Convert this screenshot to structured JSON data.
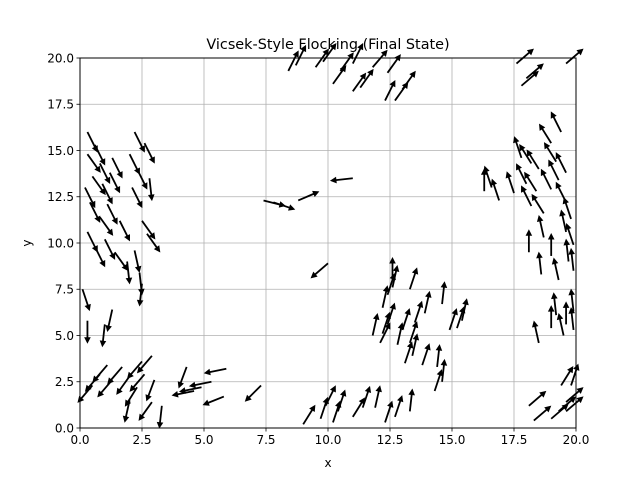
{
  "chart_data": {
    "type": "quiver",
    "title": "Vicsek-Style Flocking (Final State)",
    "xlabel": "x",
    "ylabel": "y",
    "xlim": [
      0,
      20
    ],
    "ylim": [
      0,
      20
    ],
    "xticks": [
      "0.0",
      "2.5",
      "5.0",
      "7.5",
      "10.0",
      "12.5",
      "15.0",
      "17.5",
      "20.0"
    ],
    "yticks": [
      "0.0",
      "2.5",
      "5.0",
      "7.5",
      "10.0",
      "12.5",
      "15.0",
      "17.5",
      "20.0"
    ],
    "grid": true,
    "arrow_color": "#000000",
    "grid_color": "#b0b0b0",
    "arrows": [
      {
        "x": 0.3,
        "y": 16.0,
        "u": 0.4,
        "v": -0.8
      },
      {
        "x": 0.6,
        "y": 15.3,
        "u": 0.4,
        "v": -0.8
      },
      {
        "x": 0.3,
        "y": 14.8,
        "u": 0.5,
        "v": -0.7
      },
      {
        "x": 0.8,
        "y": 14.3,
        "u": 0.4,
        "v": -0.8
      },
      {
        "x": 0.5,
        "y": 13.6,
        "u": 0.5,
        "v": -0.7
      },
      {
        "x": 0.2,
        "y": 13.0,
        "u": 0.4,
        "v": -0.8
      },
      {
        "x": 0.9,
        "y": 13.2,
        "u": 0.4,
        "v": -0.8
      },
      {
        "x": 0.4,
        "y": 12.2,
        "u": 0.4,
        "v": -0.8
      },
      {
        "x": 0.8,
        "y": 11.4,
        "u": 0.5,
        "v": -0.7
      },
      {
        "x": 0.3,
        "y": 10.6,
        "u": 0.4,
        "v": -0.8
      },
      {
        "x": 1.0,
        "y": 10.2,
        "u": 0.4,
        "v": -0.8
      },
      {
        "x": 1.4,
        "y": 9.5,
        "u": 0.5,
        "v": -0.7
      },
      {
        "x": 0.6,
        "y": 9.8,
        "u": 0.4,
        "v": -0.8
      },
      {
        "x": 1.1,
        "y": 12.1,
        "u": 0.4,
        "v": -0.8
      },
      {
        "x": 1.6,
        "y": 11.2,
        "u": 0.4,
        "v": -0.8
      },
      {
        "x": 1.3,
        "y": 14.6,
        "u": 0.4,
        "v": -0.8
      },
      {
        "x": 1.2,
        "y": 13.8,
        "u": 0.4,
        "v": -0.8
      },
      {
        "x": 2.2,
        "y": 16.0,
        "u": 0.4,
        "v": -0.8
      },
      {
        "x": 2.6,
        "y": 15.4,
        "u": 0.4,
        "v": -0.8
      },
      {
        "x": 2.0,
        "y": 14.8,
        "u": 0.4,
        "v": -0.8
      },
      {
        "x": 2.3,
        "y": 14.0,
        "u": 0.4,
        "v": -0.8
      },
      {
        "x": 2.1,
        "y": 13.0,
        "u": 0.4,
        "v": -0.8
      },
      {
        "x": 2.8,
        "y": 13.5,
        "u": 0.1,
        "v": -0.9
      },
      {
        "x": 2.5,
        "y": 11.2,
        "u": 0.5,
        "v": -0.7
      },
      {
        "x": 2.7,
        "y": 10.5,
        "u": 0.5,
        "v": -0.7
      },
      {
        "x": 2.2,
        "y": 9.6,
        "u": 0.2,
        "v": -0.9
      },
      {
        "x": 1.9,
        "y": 9.0,
        "u": 0.1,
        "v": -0.9
      },
      {
        "x": 2.4,
        "y": 8.4,
        "u": 0.1,
        "v": -0.9
      },
      {
        "x": 0.1,
        "y": 7.5,
        "u": 0.3,
        "v": -0.9
      },
      {
        "x": 0.3,
        "y": 5.8,
        "u": 0.0,
        "v": -1.0
      },
      {
        "x": 1.3,
        "y": 6.4,
        "u": -0.2,
        "v": -0.9
      },
      {
        "x": 1.0,
        "y": 5.6,
        "u": -0.1,
        "v": -0.9
      },
      {
        "x": 2.5,
        "y": 7.8,
        "u": -0.1,
        "v": -0.9
      },
      {
        "x": 1.1,
        "y": 3.4,
        "u": -0.6,
        "v": -0.7
      },
      {
        "x": 0.8,
        "y": 2.9,
        "u": -0.6,
        "v": -0.7
      },
      {
        "x": 1.7,
        "y": 3.3,
        "u": -0.6,
        "v": -0.7
      },
      {
        "x": 0.5,
        "y": 2.3,
        "u": -0.6,
        "v": -0.7
      },
      {
        "x": 1.3,
        "y": 2.6,
        "u": -0.6,
        "v": -0.7
      },
      {
        "x": 2.0,
        "y": 2.8,
        "u": -0.5,
        "v": -0.7
      },
      {
        "x": 2.5,
        "y": 3.6,
        "u": -0.6,
        "v": -0.7
      },
      {
        "x": 2.9,
        "y": 3.9,
        "u": -0.6,
        "v": -0.7
      },
      {
        "x": 2.3,
        "y": 2.2,
        "u": -0.5,
        "v": -0.8
      },
      {
        "x": 2.0,
        "y": 1.5,
        "u": -0.2,
        "v": -0.9
      },
      {
        "x": 2.6,
        "y": 2.9,
        "u": -0.6,
        "v": -0.7
      },
      {
        "x": 3.0,
        "y": 2.6,
        "u": -0.3,
        "v": -0.8
      },
      {
        "x": 2.9,
        "y": 1.4,
        "u": -0.5,
        "v": -0.7
      },
      {
        "x": 3.3,
        "y": 1.2,
        "u": -0.1,
        "v": -0.9
      },
      {
        "x": 4.3,
        "y": 3.3,
        "u": -0.3,
        "v": -0.8
      },
      {
        "x": 5.3,
        "y": 2.5,
        "u": -1.0,
        "v": -0.2
      },
      {
        "x": 4.9,
        "y": 2.2,
        "u": -1.0,
        "v": -0.2
      },
      {
        "x": 4.6,
        "y": 2.0,
        "u": -1.0,
        "v": -0.2
      },
      {
        "x": 5.9,
        "y": 3.2,
        "u": -1.0,
        "v": -0.2
      },
      {
        "x": 5.8,
        "y": 1.7,
        "u": -1.0,
        "v": -0.4
      },
      {
        "x": 7.3,
        "y": 2.3,
        "u": -0.7,
        "v": -0.7
      },
      {
        "x": 7.4,
        "y": 12.3,
        "u": 0.8,
        "v": -0.2
      },
      {
        "x": 7.8,
        "y": 12.2,
        "u": 0.9,
        "v": -0.3
      },
      {
        "x": 8.8,
        "y": 12.3,
        "u": 0.7,
        "v": 0.3
      },
      {
        "x": 11.0,
        "y": 13.5,
        "u": -0.9,
        "v": -0.1
      },
      {
        "x": 10.0,
        "y": 8.9,
        "u": -0.7,
        "v": -0.6
      },
      {
        "x": 8.4,
        "y": 19.3,
        "u": 0.4,
        "v": 0.8
      },
      {
        "x": 8.7,
        "y": 19.6,
        "u": 0.4,
        "v": 0.8
      },
      {
        "x": 9.5,
        "y": 19.5,
        "u": 0.5,
        "v": 0.7
      },
      {
        "x": 10.2,
        "y": 18.6,
        "u": 0.5,
        "v": 0.7
      },
      {
        "x": 10.5,
        "y": 19.3,
        "u": 0.5,
        "v": 0.7
      },
      {
        "x": 11.0,
        "y": 18.2,
        "u": 0.5,
        "v": 0.7
      },
      {
        "x": 11.3,
        "y": 18.4,
        "u": 0.5,
        "v": 0.7
      },
      {
        "x": 11.8,
        "y": 19.5,
        "u": 0.6,
        "v": 0.7
      },
      {
        "x": 12.4,
        "y": 19.2,
        "u": 0.5,
        "v": 0.7
      },
      {
        "x": 12.3,
        "y": 17.7,
        "u": 0.4,
        "v": 0.8
      },
      {
        "x": 12.7,
        "y": 17.7,
        "u": 0.5,
        "v": 0.7
      },
      {
        "x": 13.0,
        "y": 18.3,
        "u": 0.5,
        "v": 0.7
      },
      {
        "x": 11.0,
        "y": 19.7,
        "u": 0.4,
        "v": 0.8
      },
      {
        "x": 9.8,
        "y": 19.8,
        "u": 0.5,
        "v": 0.7
      },
      {
        "x": 11.8,
        "y": 5.0,
        "u": 0.2,
        "v": 0.9
      },
      {
        "x": 12.2,
        "y": 5.1,
        "u": 0.3,
        "v": 0.9
      },
      {
        "x": 12.1,
        "y": 4.6,
        "u": 0.4,
        "v": 0.8
      },
      {
        "x": 12.4,
        "y": 5.6,
        "u": 0.3,
        "v": 0.9
      },
      {
        "x": 12.2,
        "y": 6.5,
        "u": 0.2,
        "v": 0.9
      },
      {
        "x": 12.4,
        "y": 7.2,
        "u": 0.3,
        "v": 0.9
      },
      {
        "x": 12.6,
        "y": 7.6,
        "u": 0.2,
        "v": 0.9
      },
      {
        "x": 13.3,
        "y": 7.5,
        "u": 0.3,
        "v": 0.9
      },
      {
        "x": 12.8,
        "y": 4.5,
        "u": 0.2,
        "v": 0.9
      },
      {
        "x": 13.0,
        "y": 5.3,
        "u": 0.3,
        "v": 0.9
      },
      {
        "x": 13.3,
        "y": 4.6,
        "u": 0.3,
        "v": 0.9
      },
      {
        "x": 13.5,
        "y": 5.7,
        "u": 0.3,
        "v": 0.9
      },
      {
        "x": 13.1,
        "y": 3.5,
        "u": 0.3,
        "v": 0.9
      },
      {
        "x": 13.4,
        "y": 3.9,
        "u": 0.2,
        "v": 0.9
      },
      {
        "x": 13.8,
        "y": 3.4,
        "u": 0.3,
        "v": 0.9
      },
      {
        "x": 14.4,
        "y": 3.3,
        "u": 0.1,
        "v": 0.9
      },
      {
        "x": 14.3,
        "y": 2.0,
        "u": 0.3,
        "v": 0.9
      },
      {
        "x": 14.6,
        "y": 2.5,
        "u": 0.1,
        "v": 0.9
      },
      {
        "x": 14.6,
        "y": 6.7,
        "u": 0.1,
        "v": 0.9
      },
      {
        "x": 14.9,
        "y": 5.3,
        "u": 0.3,
        "v": 0.9
      },
      {
        "x": 15.2,
        "y": 5.4,
        "u": 0.3,
        "v": 0.9
      },
      {
        "x": 15.4,
        "y": 5.8,
        "u": 0.2,
        "v": 0.9
      },
      {
        "x": 12.6,
        "y": 8.0,
        "u": 0.0,
        "v": 1.0
      },
      {
        "x": 13.9,
        "y": 6.2,
        "u": 0.2,
        "v": 0.9
      },
      {
        "x": 9.0,
        "y": 0.2,
        "u": 0.5,
        "v": 0.8
      },
      {
        "x": 9.7,
        "y": 0.5,
        "u": 0.3,
        "v": 0.9
      },
      {
        "x": 10.2,
        "y": 0.3,
        "u": 0.3,
        "v": 0.9
      },
      {
        "x": 10.4,
        "y": 0.9,
        "u": 0.3,
        "v": 0.9
      },
      {
        "x": 11.0,
        "y": 0.6,
        "u": 0.5,
        "v": 0.8
      },
      {
        "x": 11.4,
        "y": 1.1,
        "u": 0.3,
        "v": 0.9
      },
      {
        "x": 11.9,
        "y": 1.1,
        "u": 0.2,
        "v": 0.9
      },
      {
        "x": 12.3,
        "y": 0.3,
        "u": 0.3,
        "v": 0.9
      },
      {
        "x": 12.7,
        "y": 0.6,
        "u": 0.3,
        "v": 0.9
      },
      {
        "x": 13.3,
        "y": 0.9,
        "u": 0.1,
        "v": 0.9
      },
      {
        "x": 9.9,
        "y": 1.2,
        "u": 0.4,
        "v": 0.8
      },
      {
        "x": 16.3,
        "y": 12.8,
        "u": 0.0,
        "v": 1.0
      },
      {
        "x": 16.6,
        "y": 13.0,
        "u": -0.3,
        "v": 0.9
      },
      {
        "x": 16.9,
        "y": 12.3,
        "u": -0.3,
        "v": 0.9
      },
      {
        "x": 17.5,
        "y": 12.7,
        "u": -0.3,
        "v": 0.9
      },
      {
        "x": 17.8,
        "y": 14.6,
        "u": -0.3,
        "v": 0.9
      },
      {
        "x": 18.2,
        "y": 14.3,
        "u": -0.5,
        "v": 0.8
      },
      {
        "x": 18.5,
        "y": 14.0,
        "u": -0.5,
        "v": 0.8
      },
      {
        "x": 18.0,
        "y": 13.2,
        "u": -0.4,
        "v": 0.8
      },
      {
        "x": 18.4,
        "y": 12.8,
        "u": -0.5,
        "v": 0.8
      },
      {
        "x": 18.2,
        "y": 12.0,
        "u": -0.4,
        "v": 0.8
      },
      {
        "x": 18.7,
        "y": 11.6,
        "u": -0.5,
        "v": 0.8
      },
      {
        "x": 19.0,
        "y": 12.9,
        "u": -0.4,
        "v": 0.8
      },
      {
        "x": 19.3,
        "y": 13.4,
        "u": -0.4,
        "v": 0.8
      },
      {
        "x": 19.6,
        "y": 13.8,
        "u": -0.4,
        "v": 0.8
      },
      {
        "x": 19.2,
        "y": 14.4,
        "u": -0.5,
        "v": 0.8
      },
      {
        "x": 19.0,
        "y": 15.4,
        "u": -0.5,
        "v": 0.8
      },
      {
        "x": 19.4,
        "y": 16.0,
        "u": -0.4,
        "v": 0.8
      },
      {
        "x": 19.6,
        "y": 12.2,
        "u": -0.4,
        "v": 0.8
      },
      {
        "x": 19.8,
        "y": 11.3,
        "u": -0.3,
        "v": 0.9
      },
      {
        "x": 19.6,
        "y": 10.6,
        "u": -0.2,
        "v": 0.9
      },
      {
        "x": 19.9,
        "y": 9.9,
        "u": -0.3,
        "v": 0.9
      },
      {
        "x": 19.7,
        "y": 9.0,
        "u": -0.1,
        "v": 0.9
      },
      {
        "x": 19.9,
        "y": 8.5,
        "u": -0.1,
        "v": 0.9
      },
      {
        "x": 19.3,
        "y": 8.0,
        "u": -0.2,
        "v": 0.9
      },
      {
        "x": 18.6,
        "y": 8.3,
        "u": -0.1,
        "v": 0.9
      },
      {
        "x": 18.1,
        "y": 9.5,
        "u": 0.0,
        "v": 1.0
      },
      {
        "x": 19.0,
        "y": 9.3,
        "u": 0.0,
        "v": 1.0
      },
      {
        "x": 18.7,
        "y": 10.3,
        "u": -0.2,
        "v": 0.9
      },
      {
        "x": 19.2,
        "y": 6.1,
        "u": -0.1,
        "v": 0.9
      },
      {
        "x": 19.6,
        "y": 5.6,
        "u": 0.0,
        "v": 1.0
      },
      {
        "x": 19.5,
        "y": 5.0,
        "u": -0.2,
        "v": 0.9
      },
      {
        "x": 19.9,
        "y": 5.3,
        "u": -0.1,
        "v": 0.9
      },
      {
        "x": 19.0,
        "y": 5.4,
        "u": 0.0,
        "v": 1.0
      },
      {
        "x": 18.5,
        "y": 4.6,
        "u": -0.2,
        "v": 0.9
      },
      {
        "x": 19.9,
        "y": 6.3,
        "u": -0.1,
        "v": 0.9
      },
      {
        "x": 17.6,
        "y": 19.7,
        "u": 0.7,
        "v": 0.6
      },
      {
        "x": 17.8,
        "y": 18.5,
        "u": 0.7,
        "v": 0.6
      },
      {
        "x": 18.0,
        "y": 18.9,
        "u": 0.7,
        "v": 0.6
      },
      {
        "x": 19.6,
        "y": 19.7,
        "u": 0.7,
        "v": 0.6
      },
      {
        "x": 18.1,
        "y": 1.2,
        "u": 0.7,
        "v": 0.6
      },
      {
        "x": 18.3,
        "y": 0.4,
        "u": 0.7,
        "v": 0.6
      },
      {
        "x": 19.0,
        "y": 0.5,
        "u": 0.7,
        "v": 0.6
      },
      {
        "x": 19.3,
        "y": 0.9,
        "u": 0.7,
        "v": 0.6
      },
      {
        "x": 19.6,
        "y": 0.9,
        "u": 0.7,
        "v": 0.6
      },
      {
        "x": 19.4,
        "y": 2.3,
        "u": 0.5,
        "v": 0.8
      },
      {
        "x": 19.8,
        "y": 2.3,
        "u": 0.3,
        "v": 0.9
      },
      {
        "x": 19.6,
        "y": 1.4,
        "u": 0.7,
        "v": 0.6
      }
    ]
  }
}
